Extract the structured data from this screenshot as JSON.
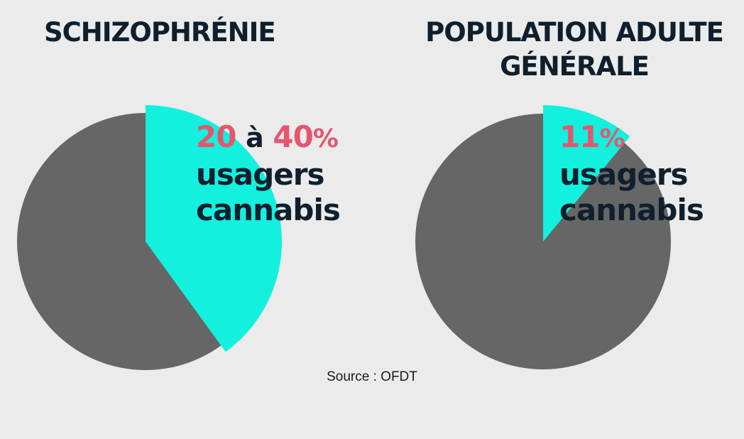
{
  "chart_data": [
    {
      "type": "pie",
      "title": "SCHIZOPHRÉNIE",
      "slices": [
        {
          "label": "usagers cannabis",
          "value": 40,
          "color": "#13f0de"
        },
        {
          "label": "",
          "value": 60,
          "color": "#666666"
        }
      ],
      "annotation": {
        "low": "20",
        "between": "à",
        "high": "40",
        "unit": "%",
        "line2": "usagers",
        "line3": "cannabis"
      }
    },
    {
      "type": "pie",
      "title": "POPULATION ADULTE GÉNÉRALE",
      "slices": [
        {
          "label": "usagers cannabis",
          "value": 11,
          "color": "#13f0de"
        },
        {
          "label": "",
          "value": 89,
          "color": "#666666"
        }
      ],
      "annotation": {
        "value": "11",
        "unit": "%",
        "line2": "usagers",
        "line3": "cannabis"
      }
    }
  ],
  "source": "Source : OFDT"
}
